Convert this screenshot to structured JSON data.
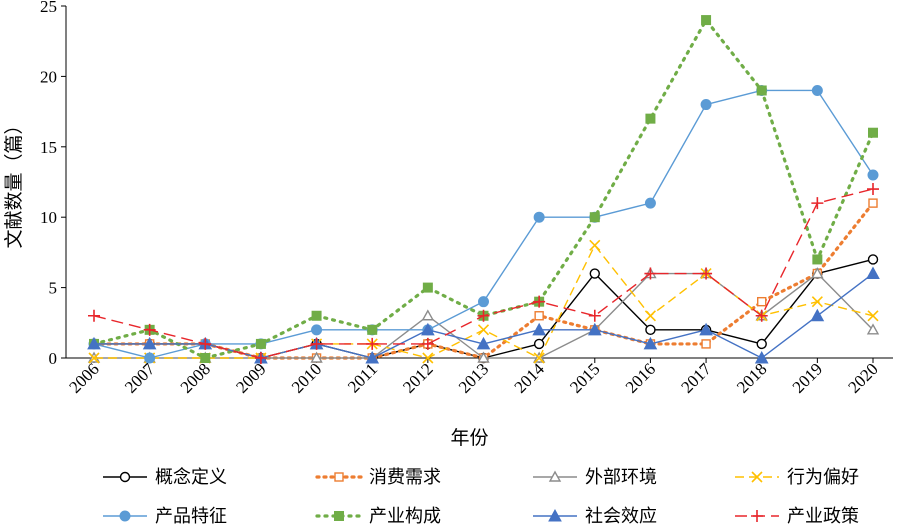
{
  "chart_data": {
    "type": "line",
    "xlabel": "年份",
    "ylabel": "文献数量（篇）",
    "ylim": [
      0,
      25
    ],
    "yticks": [
      0,
      5,
      10,
      15,
      20,
      25
    ],
    "categories": [
      "2006",
      "2007",
      "2008",
      "2009",
      "2010",
      "2011",
      "2012",
      "2013",
      "2014",
      "2015",
      "2016",
      "2017",
      "2018",
      "2019",
      "2020"
    ],
    "legend_position": "bottom",
    "grid": false,
    "series": [
      {
        "name": "概念定义",
        "color": "#000000",
        "dash": "",
        "marker": "circle-open",
        "values": [
          1,
          1,
          1,
          0,
          1,
          0,
          1,
          0,
          1,
          6,
          2,
          2,
          1,
          6,
          7
        ]
      },
      {
        "name": "消费需求",
        "color": "#ED7D31",
        "dash": "2,5",
        "marker": "square-open",
        "values": [
          1,
          1,
          1,
          0,
          0,
          0,
          1,
          0,
          3,
          2,
          1,
          1,
          4,
          6,
          11
        ]
      },
      {
        "name": "外部环境",
        "color": "#8C8C8C",
        "dash": "",
        "marker": "triangle-open",
        "values": [
          0,
          0,
          0,
          0,
          0,
          0,
          3,
          0,
          0,
          2,
          6,
          6,
          3,
          6,
          2
        ]
      },
      {
        "name": "行为偏好",
        "color": "#FFC000",
        "dash": "9,5",
        "marker": "x",
        "values": [
          0,
          0,
          0,
          0,
          1,
          1,
          0,
          2,
          0,
          8,
          3,
          6,
          3,
          4,
          3
        ]
      },
      {
        "name": "产品特征",
        "color": "#5B9BD5",
        "dash": "",
        "marker": "circle-filled",
        "values": [
          1,
          0,
          1,
          1,
          2,
          2,
          2,
          4,
          10,
          10,
          11,
          18,
          19,
          19,
          13
        ]
      },
      {
        "name": "产业构成",
        "color": "#70AD47",
        "dash": "2,6",
        "marker": "square-filled",
        "values": [
          1,
          2,
          0,
          1,
          3,
          2,
          5,
          3,
          4,
          10,
          17,
          24,
          19,
          7,
          16
        ]
      },
      {
        "name": "社会效应",
        "color": "#4472C4",
        "dash": "",
        "marker": "triangle-filled",
        "values": [
          1,
          1,
          1,
          0,
          1,
          0,
          2,
          1,
          2,
          2,
          1,
          2,
          0,
          3,
          6
        ]
      },
      {
        "name": "产业政策",
        "color": "#E8262B",
        "dash": "12,6",
        "marker": "plus",
        "values": [
          3,
          2,
          1,
          0,
          1,
          1,
          1,
          3,
          4,
          3,
          6,
          6,
          3,
          11,
          12
        ]
      }
    ]
  }
}
